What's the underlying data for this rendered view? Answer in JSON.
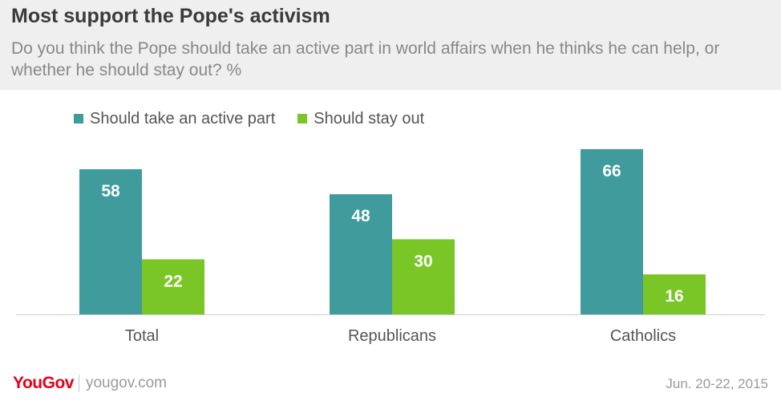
{
  "header": {
    "title": "Most support the Pope's activism",
    "subtitle": "Do you think the Pope should take an active part in world affairs when he thinks he can help, or whether he should stay out? %"
  },
  "chart_data": {
    "type": "bar",
    "title": "Most support the Pope's activism",
    "subtitle": "Do you think the Pope should take an active part in world affairs when he thinks he can help, or whether he should stay out? %",
    "categories": [
      "Total",
      "Republicans",
      "Catholics"
    ],
    "series": [
      {
        "name": "Should take an active part",
        "values": [
          58,
          48,
          66
        ],
        "color": "#409b9d"
      },
      {
        "name": "Should stay out",
        "values": [
          22,
          30,
          16
        ],
        "color": "#7ac626"
      }
    ],
    "xlabel": "",
    "ylabel": "",
    "ylim": [
      0,
      66
    ],
    "grid": false,
    "legend": "top-left",
    "data_labels": true
  },
  "footer": {
    "brand": "YouGov",
    "site": "yougov.com",
    "date": "Jun. 20-22, 2015"
  }
}
